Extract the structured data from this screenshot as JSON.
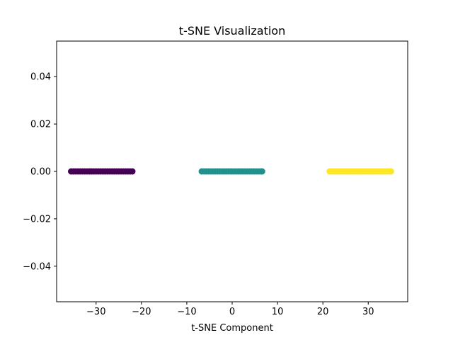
{
  "chart_data": {
    "type": "scatter",
    "title": "t-SNE Visualization",
    "xlabel": "t-SNE Component",
    "ylabel": "",
    "xlim": [
      -38.7,
      38.7
    ],
    "ylim": [
      -0.055,
      0.055
    ],
    "xticks": [
      -30,
      -20,
      -10,
      0,
      10,
      20,
      30
    ],
    "xtick_labels": [
      "−30",
      "−20",
      "−10",
      "0",
      "10",
      "20",
      "30"
    ],
    "yticks": [
      -0.04,
      -0.02,
      0.0,
      0.02,
      0.04
    ],
    "ytick_labels": [
      "−0.04",
      "−0.02",
      "0.00",
      "0.02",
      "0.04"
    ],
    "grid": false,
    "legend": "none",
    "series": [
      {
        "color": "#440154",
        "x": [
          -35.5,
          -35.0,
          -34.5,
          -34.0,
          -33.5,
          -33.0,
          -32.5,
          -32.0,
          -31.5,
          -31.0,
          -30.5,
          -30.0,
          -29.5,
          -29.0,
          -28.5,
          -28.0,
          -27.5,
          -27.0,
          -26.5,
          -26.0,
          -25.5,
          -25.0,
          -24.5,
          -24.0,
          -23.5,
          -23.0,
          -22.5,
          -22.0
        ],
        "y": [
          0,
          0,
          0,
          0,
          0,
          0,
          0,
          0,
          0,
          0,
          0,
          0,
          0,
          0,
          0,
          0,
          0,
          0,
          0,
          0,
          0,
          0,
          0,
          0,
          0,
          0,
          0,
          0
        ]
      },
      {
        "color": "#21918c",
        "x": [
          -6.7,
          -6.2,
          -5.7,
          -5.2,
          -4.7,
          -4.2,
          -3.7,
          -3.2,
          -2.7,
          -2.2,
          -1.7,
          -1.2,
          -0.7,
          -0.2,
          0.3,
          0.8,
          1.3,
          1.8,
          2.3,
          2.8,
          3.3,
          3.8,
          4.3,
          4.8,
          5.3,
          5.8,
          6.3,
          6.6
        ],
        "y": [
          0,
          0,
          0,
          0,
          0,
          0,
          0,
          0,
          0,
          0,
          0,
          0,
          0,
          0,
          0,
          0,
          0,
          0,
          0,
          0,
          0,
          0,
          0,
          0,
          0,
          0,
          0,
          0
        ]
      },
      {
        "color": "#fde725",
        "x": [
          21.5,
          22.0,
          22.5,
          23.0,
          23.5,
          24.0,
          24.5,
          25.0,
          25.5,
          26.0,
          26.5,
          27.0,
          27.5,
          28.0,
          28.5,
          29.0,
          29.5,
          30.0,
          30.5,
          31.0,
          31.5,
          32.0,
          32.5,
          33.0,
          33.5,
          34.0,
          34.5,
          35.0
        ],
        "y": [
          0,
          0,
          0,
          0,
          0,
          0,
          0,
          0,
          0,
          0,
          0,
          0,
          0,
          0,
          0,
          0,
          0,
          0,
          0,
          0,
          0,
          0,
          0,
          0,
          0,
          0,
          0,
          0
        ]
      }
    ]
  }
}
